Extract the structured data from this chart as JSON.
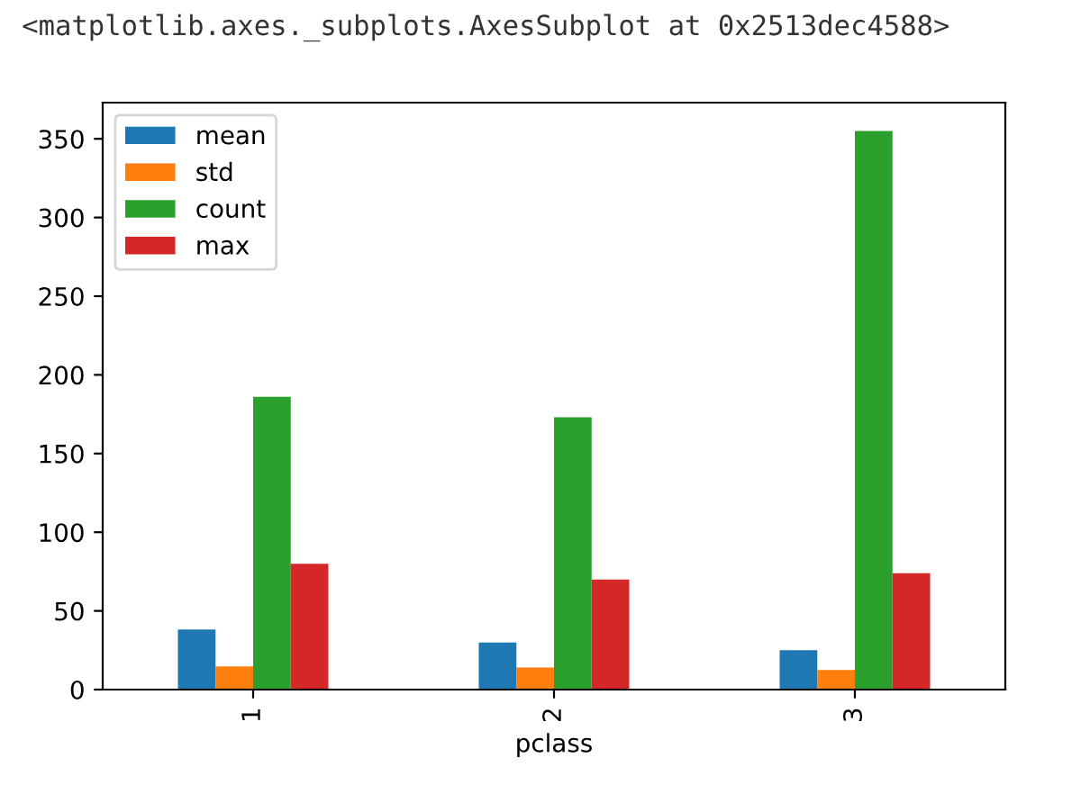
{
  "chart_data": {
    "type": "bar",
    "xlabel": "pclass",
    "annotations": [
      "<matplotlib.axes._subplots.AxesSubplot at 0x2513dec4588>"
    ],
    "categories": [
      "1",
      "2",
      "3"
    ],
    "series": [
      {
        "name": "mean",
        "color": "#1f77b4",
        "values": [
          38.2,
          29.9,
          25.1
        ]
      },
      {
        "name": "std",
        "color": "#ff7f0e",
        "values": [
          14.8,
          14.0,
          12.5
        ]
      },
      {
        "name": "count",
        "color": "#2ca02c",
        "values": [
          186,
          173,
          355
        ]
      },
      {
        "name": "max",
        "color": "#d62728",
        "values": [
          80,
          70,
          74
        ]
      }
    ],
    "ylim": [
      0,
      373
    ],
    "yticks": [
      0,
      50,
      100,
      150,
      200,
      250,
      300,
      350
    ],
    "grid": false,
    "legend": "top left"
  }
}
